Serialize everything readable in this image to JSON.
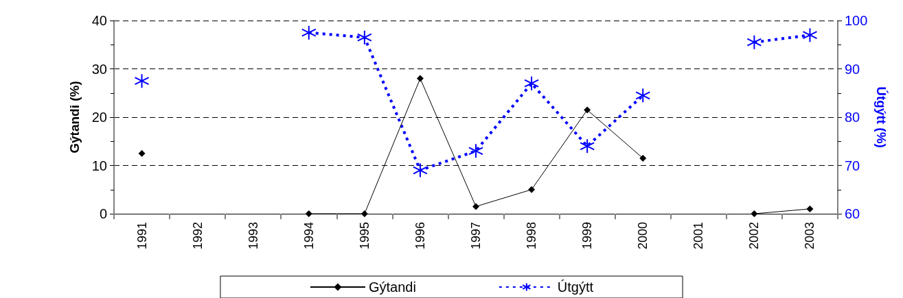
{
  "chart_data": {
    "type": "line",
    "categories": [
      "1991",
      "1992",
      "1993",
      "1994",
      "1995",
      "1996",
      "1997",
      "1998",
      "1999",
      "2000",
      "2001",
      "2002",
      "2003"
    ],
    "ylabel": "Gýtandi (%)",
    "y2label": "Útgýtt (%)",
    "series": [
      {
        "name": "Gýtandi",
        "color": "#000000",
        "marker": "diamond",
        "line_style": "solid",
        "values": [
          12.5,
          null,
          null,
          0,
          0,
          28,
          1.5,
          5,
          21.5,
          11.5,
          null,
          0,
          1
        ]
      },
      {
        "name": "Útgýtt",
        "color": "#0000ff",
        "marker": "cross",
        "line_style": "dashed",
        "axis": "y2",
        "values": [
          87.5,
          null,
          null,
          97.5,
          96.5,
          69,
          73,
          87,
          74,
          84.5,
          null,
          95.5,
          97
        ]
      }
    ],
    "ylim": [
      0,
      40
    ],
    "yticks": [
      0,
      10,
      20,
      30,
      40
    ],
    "y2lim": [
      60,
      100
    ],
    "y2ticks": [
      60,
      70,
      80,
      90,
      100
    ],
    "grid": "y",
    "legend": "bottom"
  }
}
